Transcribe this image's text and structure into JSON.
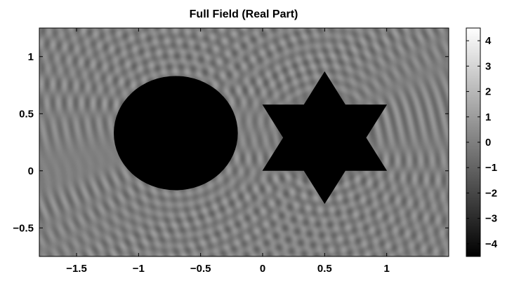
{
  "chart_data": {
    "type": "heatmap",
    "title": "Full Field (Real Part)",
    "colormap": "gray",
    "xlim": [
      -1.8,
      1.5
    ],
    "ylim": [
      -0.75,
      1.25
    ],
    "x_ticks": [
      -1.5,
      -1,
      -0.5,
      0,
      0.5,
      1
    ],
    "x_tick_labels": [
      "−1.5",
      "−1",
      "−0.5",
      "0",
      "0.5",
      "1"
    ],
    "y_ticks": [
      1,
      0.5,
      0,
      -0.5
    ],
    "y_tick_labels": [
      "1",
      "0.5",
      "0",
      "−0.5"
    ],
    "colorbar": {
      "range": [
        -4.5,
        4.5
      ],
      "ticks": [
        4,
        3,
        2,
        1,
        0,
        -1,
        -2,
        -3,
        -4
      ],
      "tick_labels": [
        "4",
        "3",
        "2",
        "1",
        "0",
        "−1",
        "−2",
        "−3",
        "−4"
      ]
    },
    "scatterers": [
      {
        "shape": "disk",
        "center": [
          -0.7,
          0.33
        ],
        "radius": 0.5,
        "value": -4.5
      },
      {
        "shape": "hexagram",
        "center": [
          0.5,
          0.29
        ],
        "vertex_radius": 0.58,
        "inner_radius": 0.335,
        "value": -4.5
      }
    ],
    "colors": {
      "scatterer_fill": "#000000",
      "frame": "#000000"
    }
  }
}
